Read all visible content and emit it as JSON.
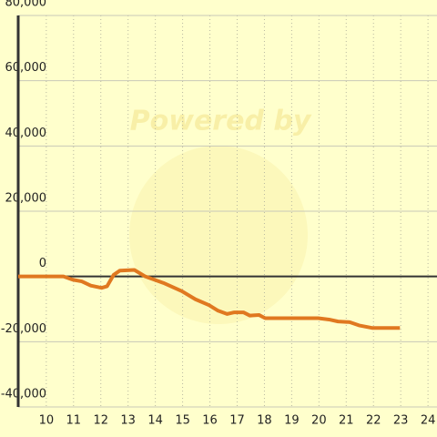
{
  "chart_data": {
    "type": "line",
    "watermark": "Powered by",
    "xlim": [
      8.97,
      24.33
    ],
    "ylim": [
      -40000,
      80000
    ],
    "xticks": [
      10,
      11,
      12,
      13,
      14,
      15,
      16,
      17,
      18,
      19,
      20,
      21,
      22,
      23,
      24
    ],
    "yticks": [
      {
        "value": -40000,
        "label": "-40,000"
      },
      {
        "value": -20000,
        "label": "-20,000"
      },
      0,
      {
        "value": 20000,
        "label": "20,000"
      },
      {
        "value": 40000,
        "label": "40,000"
      },
      {
        "value": 60000,
        "label": "60,000"
      },
      {
        "value": 80000,
        "label": "80,000"
      }
    ],
    "grid": true,
    "zero_line": true,
    "series": [
      {
        "color": "#e07820",
        "x": [
          8.97,
          10.63,
          10.97,
          11.3,
          11.63,
          12.03,
          12.23,
          12.47,
          12.7,
          13.23,
          13.63,
          14.3,
          14.97,
          15.47,
          15.97,
          16.3,
          16.63,
          16.9,
          17.23,
          17.47,
          17.8,
          18.03,
          19.97,
          20.37,
          20.7,
          21.13,
          21.47,
          21.97,
          22.97
        ],
        "values": [
          0,
          0,
          -1000,
          -1500,
          -2800,
          -3500,
          -3000,
          500,
          1800,
          2000,
          0,
          -2000,
          -4500,
          -7000,
          -8800,
          -10500,
          -11500,
          -11000,
          -11000,
          -12000,
          -11800,
          -12800,
          -12800,
          -13200,
          -13800,
          -14000,
          -15000,
          -15800,
          -15800
        ]
      }
    ]
  }
}
